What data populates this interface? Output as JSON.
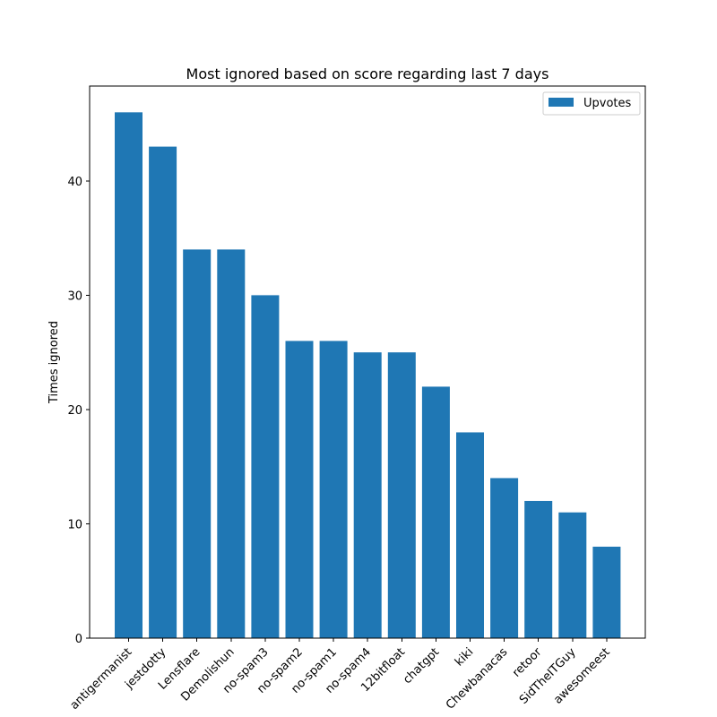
{
  "chart_data": {
    "type": "bar",
    "title": "Most ignored based on score regarding last 7 days",
    "xlabel": "",
    "ylabel": "Times ignored",
    "categories": [
      "antigermanist",
      "jestdotty",
      "Lensflare",
      "Demolishun",
      "no-spam3",
      "no-spam2",
      "no-spam1",
      "no-spam4",
      "12bitfloat",
      "chatgpt",
      "kiki",
      "Chewbanacas",
      "retoor",
      "SidTheITGuy",
      "awesomeest"
    ],
    "series": [
      {
        "name": "Upvotes",
        "color": "#1f77b4",
        "values": [
          46,
          43,
          34,
          34,
          30,
          26,
          26,
          25,
          25,
          22,
          18,
          14,
          12,
          11,
          8
        ]
      }
    ],
    "ylim": [
      0,
      48.3
    ],
    "yticks": [
      0,
      10,
      20,
      30,
      40
    ],
    "grid": false,
    "legend_position": "top-right",
    "x_tick_rotation": 45
  }
}
